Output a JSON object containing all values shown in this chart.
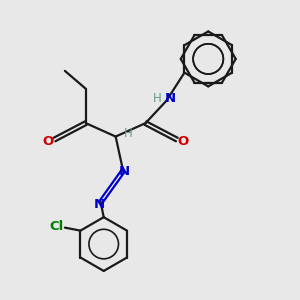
{
  "bg_color": "#e8e8e8",
  "bond_color": "#1a1a1a",
  "N_color": "#0000cc",
  "O_color": "#cc0000",
  "Cl_color": "#008000",
  "H_color": "#6a9a8a",
  "bond_lw": 1.6,
  "figsize": [
    3.0,
    3.0
  ],
  "dpi": 100,
  "xlim": [
    0,
    10
  ],
  "ylim": [
    0,
    10
  ]
}
